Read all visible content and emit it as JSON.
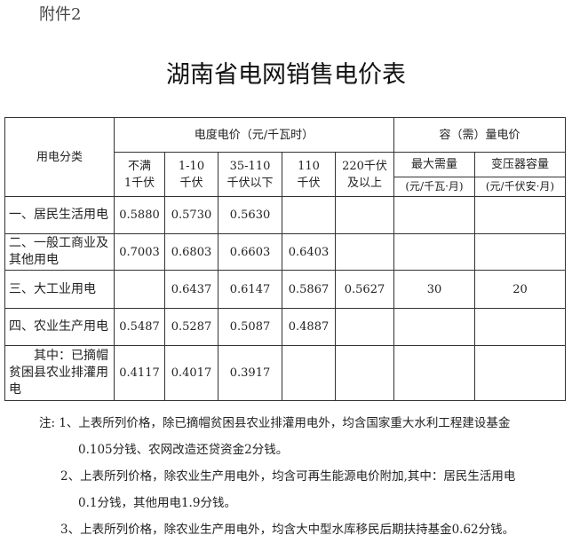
{
  "attachment_label": "附件2",
  "title": "湖南省电网销售电价表",
  "table": {
    "category_header": "用电分类",
    "energy_price_header": "电度电价（元/千瓦时）",
    "capacity_price_header": "容（需）量电价",
    "voltage_columns": [
      [
        "不满",
        "1千伏"
      ],
      [
        "1-10",
        "千伏"
      ],
      [
        "35-110",
        "千伏以下"
      ],
      [
        "110",
        "千伏"
      ],
      [
        "220千伏",
        "及以上"
      ]
    ],
    "capacity_columns": [
      {
        "name": "最大需量",
        "unit": "(元/千瓦·月)"
      },
      {
        "name": "变压器容量",
        "unit": "(元/千伏安·月)"
      }
    ],
    "rows": [
      {
        "category": "一、居民生活用电",
        "values": [
          "0.5880",
          "0.5730",
          "0.5630",
          "",
          "",
          "",
          ""
        ]
      },
      {
        "category": "二、一般工商业及其他用电",
        "values": [
          "0.7003",
          "0.6803",
          "0.6603",
          "0.6403",
          "",
          "",
          ""
        ]
      },
      {
        "category": "三、大工业用电",
        "values": [
          "",
          "0.6437",
          "0.6147",
          "0.5867",
          "0.5627",
          "30",
          "20"
        ]
      },
      {
        "category": "四、农业生产用电",
        "values": [
          "0.5487",
          "0.5287",
          "0.5087",
          "0.4887",
          "",
          "",
          ""
        ]
      },
      {
        "category": "其中：已摘帽贫困县农业排灌用电",
        "values": [
          "0.4117",
          "0.4017",
          "0.3917",
          "",
          "",
          "",
          ""
        ]
      }
    ]
  },
  "notes": [
    "注: 1、上表所列价格，除已摘帽贫困县农业排灌用电外，均含国家重大水利工程建设基金",
    "0.105分钱、农网改造还贷资金2分钱。",
    "2、上表所列价格，除农业生产用电外，均含可再生能源电价附加,其中：居民生活用电",
    "0.1分钱，其他用电1.9分钱。",
    "3、上表所列价格，除农业生产用电外，均含大中型水库移民后期扶持基金0.62分钱。"
  ]
}
